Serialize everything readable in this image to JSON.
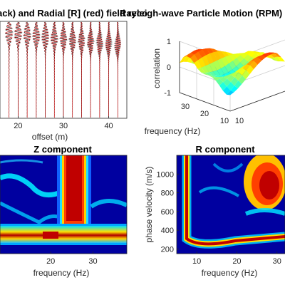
{
  "figure": {
    "panels": [
      "seismograms",
      "rpm",
      "z_component",
      "r_component"
    ]
  },
  "chart_data": [
    {
      "id": "seismograms",
      "type": "line",
      "title": "Vertical [Z] (black) and Radial [R] (red) field records",
      "title_visible": "ack) and Radial [R] (red) field reco",
      "xlabel": "offset (m)",
      "ylabel": "",
      "x_ticks": [
        "20",
        "30",
        "40"
      ],
      "xlim": [
        16,
        44
      ],
      "trace_offsets": [
        18,
        20,
        22,
        24,
        26,
        28,
        30,
        32,
        34,
        36,
        38,
        40,
        42
      ],
      "series": [
        {
          "color": "#000000"
        },
        {
          "color": "#d00000"
        }
      ],
      "grid": false
    },
    {
      "id": "rpm",
      "type": "surface",
      "title": "Rayleigh-wave Particle Motion (RPM) fit",
      "title_visible": "Rayleigh-wave Particle Motion (RPM) fi",
      "zlabel": "correlation",
      "xlabel": "frequency (Hz)",
      "z_ticks": [
        "1",
        "0",
        "-1"
      ],
      "zlim": [
        -1,
        1
      ],
      "x_ticks": [
        "30",
        "20",
        "10"
      ],
      "y_ticks": [
        "10"
      ],
      "colormap": "jet",
      "grid": true
    },
    {
      "id": "z_component",
      "type": "heatmap",
      "title": "Z component",
      "xlabel": "frequency (Hz)",
      "ylabel": "",
      "x_ticks": [
        "20",
        "30"
      ],
      "xlim": [
        8,
        38
      ],
      "ylim": [
        150,
        1200
      ],
      "colormap": "jet",
      "dispersion_ridge": [
        {
          "f": 8,
          "v": 350
        },
        {
          "f": 12,
          "v": 330
        },
        {
          "f": 16,
          "v": 315
        },
        {
          "f": 20,
          "v": 305
        },
        {
          "f": 24,
          "v": 300
        },
        {
          "f": 28,
          "v": 300
        },
        {
          "f": 32,
          "v": 310
        },
        {
          "f": 36,
          "v": 320
        }
      ]
    },
    {
      "id": "r_component",
      "type": "heatmap",
      "title": "R component",
      "xlabel": "frequency (Hz)",
      "ylabel": "phase velocity (m/s)",
      "x_ticks": [
        "10",
        "20",
        "30"
      ],
      "y_ticks": [
        "200",
        "400",
        "600",
        "800",
        "1000"
      ],
      "xlim": [
        5,
        32
      ],
      "ylim": [
        150,
        1200
      ],
      "colormap": "jet",
      "dispersion_ridge": [
        {
          "f": 6,
          "v": 1100
        },
        {
          "f": 7,
          "v": 600
        },
        {
          "f": 9,
          "v": 400
        },
        {
          "f": 12,
          "v": 340
        },
        {
          "f": 16,
          "v": 320
        },
        {
          "f": 20,
          "v": 310
        },
        {
          "f": 24,
          "v": 305
        }
      ]
    }
  ]
}
